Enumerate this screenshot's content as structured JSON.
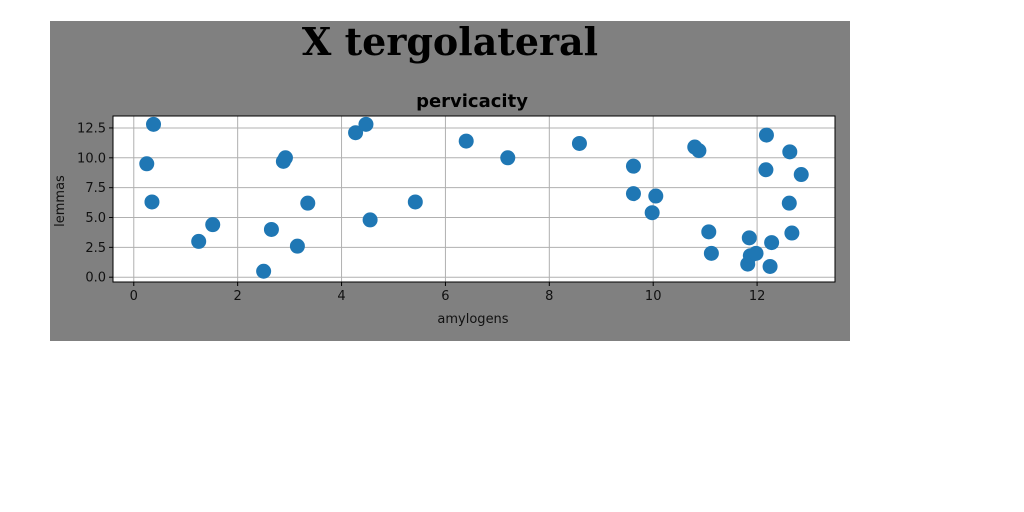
{
  "chart_data": {
    "type": "scatter",
    "suptitle": "X tergolateral",
    "title": "pervicacity",
    "xlabel": "amylogens",
    "ylabel": "lemmas",
    "xlim": [
      -0.4,
      13.5
    ],
    "ylim": [
      -0.4,
      13.5
    ],
    "xticks": [
      0,
      2,
      4,
      6,
      8,
      10,
      12
    ],
    "xtick_labels": [
      "0",
      "2",
      "4",
      "6",
      "8",
      "10",
      "12"
    ],
    "yticks": [
      0.0,
      2.5,
      5.0,
      7.5,
      10.0,
      12.5
    ],
    "ytick_labels": [
      "0.0",
      "2.5",
      "5.0",
      "7.5",
      "10.0",
      "12.5"
    ],
    "grid": true,
    "marker_color": "#1f77b4",
    "figure_background": "#808080",
    "axes_background": "#ffffff",
    "points": [
      {
        "x": 0.38,
        "y": 12.8
      },
      {
        "x": 0.25,
        "y": 9.5
      },
      {
        "x": 0.35,
        "y": 6.3
      },
      {
        "x": 1.25,
        "y": 3.0
      },
      {
        "x": 1.52,
        "y": 4.4
      },
      {
        "x": 2.5,
        "y": 0.5
      },
      {
        "x": 2.65,
        "y": 4.0
      },
      {
        "x": 2.88,
        "y": 9.7
      },
      {
        "x": 2.92,
        "y": 10.0
      },
      {
        "x": 3.15,
        "y": 2.6
      },
      {
        "x": 3.35,
        "y": 6.2
      },
      {
        "x": 4.27,
        "y": 12.1
      },
      {
        "x": 4.47,
        "y": 12.8
      },
      {
        "x": 4.55,
        "y": 4.8
      },
      {
        "x": 5.42,
        "y": 6.3
      },
      {
        "x": 6.4,
        "y": 11.4
      },
      {
        "x": 7.2,
        "y": 10.0
      },
      {
        "x": 8.58,
        "y": 11.2
      },
      {
        "x": 9.62,
        "y": 9.3
      },
      {
        "x": 9.62,
        "y": 7.0
      },
      {
        "x": 9.98,
        "y": 5.4
      },
      {
        "x": 10.05,
        "y": 6.8
      },
      {
        "x": 10.8,
        "y": 10.9
      },
      {
        "x": 10.88,
        "y": 10.6
      },
      {
        "x": 11.07,
        "y": 3.8
      },
      {
        "x": 11.12,
        "y": 2.0
      },
      {
        "x": 11.82,
        "y": 1.1
      },
      {
        "x": 11.85,
        "y": 3.3
      },
      {
        "x": 11.87,
        "y": 1.8
      },
      {
        "x": 11.98,
        "y": 2.0
      },
      {
        "x": 12.17,
        "y": 9.0
      },
      {
        "x": 12.18,
        "y": 11.9
      },
      {
        "x": 12.25,
        "y": 0.9
      },
      {
        "x": 12.28,
        "y": 2.9
      },
      {
        "x": 12.62,
        "y": 6.2
      },
      {
        "x": 12.63,
        "y": 10.5
      },
      {
        "x": 12.67,
        "y": 3.7
      },
      {
        "x": 12.85,
        "y": 8.6
      }
    ]
  }
}
